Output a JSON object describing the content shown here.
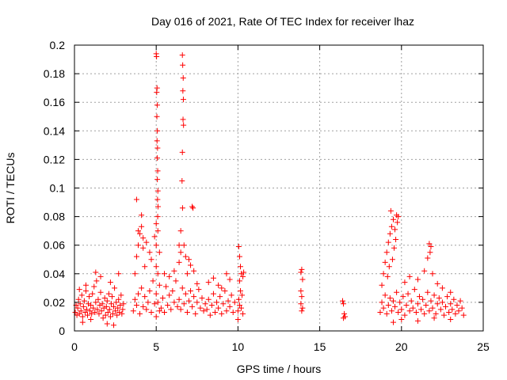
{
  "chart_data": {
    "type": "scatter",
    "title": "Day 016 of 2021, Rate Of TEC Index for receiver lhaz",
    "xlabel": "GPS time / hours",
    "ylabel": "ROTI / TECUs",
    "xlim": [
      0,
      25
    ],
    "ylim": [
      0,
      0.2
    ],
    "x_ticks": [
      "0",
      "5",
      "10",
      "15",
      "20",
      "25"
    ],
    "y_ticks": [
      "0",
      "0.02",
      "0.04",
      "0.06",
      "0.08",
      "0.1",
      "0.12",
      "0.14",
      "0.16",
      "0.18",
      "0.2"
    ],
    "grid": true,
    "marker": "+",
    "color": "#ff0000",
    "series": [
      {
        "points": [
          [
            0.05,
            0.013
          ],
          [
            0.1,
            0.018
          ],
          [
            0.15,
            0.011
          ],
          [
            0.2,
            0.016
          ],
          [
            0.25,
            0.022
          ],
          [
            0.3,
            0.012
          ],
          [
            0.35,
            0.019
          ],
          [
            0.4,
            0.014
          ],
          [
            0.45,
            0.025
          ],
          [
            0.5,
            0.01
          ],
          [
            0.55,
            0.017
          ],
          [
            0.6,
            0.021
          ],
          [
            0.65,
            0.013
          ],
          [
            0.7,
            0.028
          ],
          [
            0.75,
            0.015
          ],
          [
            0.8,
            0.011
          ],
          [
            0.85,
            0.019
          ],
          [
            0.9,
            0.024
          ],
          [
            0.95,
            0.014
          ],
          [
            1.0,
            0.018
          ],
          [
            1.05,
            0.012
          ],
          [
            1.1,
            0.026
          ],
          [
            1.15,
            0.016
          ],
          [
            1.2,
            0.031
          ],
          [
            1.25,
            0.013
          ],
          [
            1.3,
            0.02
          ],
          [
            1.35,
            0.035
          ],
          [
            1.4,
            0.015
          ],
          [
            1.45,
            0.022
          ],
          [
            1.5,
            0.012
          ],
          [
            1.55,
            0.018
          ],
          [
            1.6,
            0.027
          ],
          [
            1.65,
            0.014
          ],
          [
            1.7,
            0.019
          ],
          [
            1.75,
            0.009
          ],
          [
            1.8,
            0.016
          ],
          [
            1.85,
            0.023
          ],
          [
            1.9,
            0.011
          ],
          [
            1.95,
            0.017
          ],
          [
            2.0,
            0.021
          ],
          [
            2.05,
            0.013
          ],
          [
            2.1,
            0.026
          ],
          [
            2.15,
            0.015
          ],
          [
            2.2,
            0.01
          ],
          [
            2.25,
            0.019
          ],
          [
            2.3,
            0.024
          ],
          [
            2.35,
            0.012
          ],
          [
            2.4,
            0.017
          ],
          [
            2.45,
            0.03
          ],
          [
            2.5,
            0.014
          ],
          [
            2.55,
            0.02
          ],
          [
            2.6,
            0.011
          ],
          [
            2.65,
            0.016
          ],
          [
            2.7,
            0.022
          ],
          [
            2.75,
            0.013
          ],
          [
            2.8,
            0.018
          ],
          [
            2.85,
            0.025
          ],
          [
            2.9,
            0.012
          ],
          [
            2.95,
            0.015
          ],
          [
            3.0,
            0.019
          ],
          [
            0.3,
            0.029
          ],
          [
            0.7,
            0.032
          ],
          [
            1.3,
            0.041
          ],
          [
            1.6,
            0.038
          ],
          [
            2.2,
            0.034
          ],
          [
            2.7,
            0.04
          ],
          [
            1.0,
            0.008
          ],
          [
            2.0,
            0.005
          ],
          [
            2.4,
            0.004
          ],
          [
            0.5,
            0.006
          ],
          [
            3.6,
            0.014
          ],
          [
            3.7,
            0.022
          ],
          [
            3.8,
            0.018
          ],
          [
            3.9,
            0.026
          ],
          [
            4.0,
            0.012
          ],
          [
            4.1,
            0.03
          ],
          [
            4.2,
            0.017
          ],
          [
            4.3,
            0.024
          ],
          [
            4.4,
            0.015
          ],
          [
            4.5,
            0.02
          ],
          [
            4.6,
            0.028
          ],
          [
            4.7,
            0.013
          ],
          [
            4.8,
            0.035
          ],
          [
            4.9,
            0.019
          ],
          [
            3.7,
            0.04
          ],
          [
            3.8,
            0.052
          ],
          [
            3.9,
            0.06
          ],
          [
            4.0,
            0.068
          ],
          [
            4.1,
            0.073
          ],
          [
            4.2,
            0.065
          ],
          [
            4.3,
            0.045
          ],
          [
            4.4,
            0.062
          ],
          [
            4.6,
            0.055
          ],
          [
            4.7,
            0.05
          ],
          [
            4.9,
            0.066
          ],
          [
            3.8,
            0.092
          ],
          [
            4.1,
            0.081
          ],
          [
            3.9,
            0.07
          ],
          [
            4.2,
            0.058
          ],
          [
            5.0,
            0.194
          ],
          [
            5.02,
            0.192
          ],
          [
            5.05,
            0.17
          ],
          [
            5.03,
            0.167
          ],
          [
            5.06,
            0.158
          ],
          [
            5.04,
            0.15
          ],
          [
            5.07,
            0.14
          ],
          [
            5.05,
            0.133
          ],
          [
            5.08,
            0.128
          ],
          [
            5.06,
            0.121
          ],
          [
            5.09,
            0.112
          ],
          [
            5.07,
            0.106
          ],
          [
            5.1,
            0.098
          ],
          [
            5.08,
            0.092
          ],
          [
            5.11,
            0.087
          ],
          [
            5.09,
            0.08
          ],
          [
            5.0,
            0.075
          ],
          [
            5.1,
            0.07
          ],
          [
            5.0,
            0.06
          ],
          [
            5.2,
            0.055
          ],
          [
            5.0,
            0.045
          ],
          [
            5.1,
            0.04
          ],
          [
            5.2,
            0.032
          ],
          [
            5.0,
            0.026
          ],
          [
            5.1,
            0.02
          ],
          [
            5.2,
            0.014
          ],
          [
            5.0,
            0.01
          ],
          [
            5.3,
            0.016
          ],
          [
            5.4,
            0.023
          ],
          [
            5.5,
            0.013
          ],
          [
            5.6,
            0.031
          ],
          [
            5.7,
            0.018
          ],
          [
            5.8,
            0.025
          ],
          [
            5.9,
            0.015
          ],
          [
            6.0,
            0.028
          ],
          [
            6.1,
            0.02
          ],
          [
            6.2,
            0.035
          ],
          [
            6.3,
            0.017
          ],
          [
            5.5,
            0.04
          ],
          [
            5.8,
            0.038
          ],
          [
            6.1,
            0.042
          ],
          [
            6.4,
            0.06
          ],
          [
            6.5,
            0.055
          ],
          [
            6.6,
            0.193
          ],
          [
            6.62,
            0.186
          ],
          [
            6.65,
            0.177
          ],
          [
            6.63,
            0.168
          ],
          [
            6.66,
            0.162
          ],
          [
            6.64,
            0.148
          ],
          [
            6.67,
            0.144
          ],
          [
            6.6,
            0.125
          ],
          [
            6.58,
            0.105
          ],
          [
            6.61,
            0.086
          ],
          [
            6.5,
            0.07
          ],
          [
            6.4,
            0.048
          ],
          [
            6.7,
            0.06
          ],
          [
            6.8,
            0.052
          ],
          [
            6.9,
            0.04
          ],
          [
            7.0,
            0.05
          ],
          [
            7.1,
            0.046
          ],
          [
            7.2,
            0.087
          ],
          [
            7.25,
            0.086
          ],
          [
            7.3,
            0.042
          ],
          [
            7.5,
            0.033
          ],
          [
            6.4,
            0.022
          ],
          [
            6.5,
            0.015
          ],
          [
            6.6,
            0.03
          ],
          [
            6.7,
            0.019
          ],
          [
            6.8,
            0.026
          ],
          [
            6.9,
            0.013
          ],
          [
            7.0,
            0.021
          ],
          [
            7.1,
            0.028
          ],
          [
            7.2,
            0.017
          ],
          [
            7.3,
            0.024
          ],
          [
            7.4,
            0.012
          ],
          [
            7.5,
            0.02
          ],
          [
            7.6,
            0.029
          ],
          [
            7.7,
            0.016
          ],
          [
            7.8,
            0.023
          ],
          [
            7.9,
            0.014
          ],
          [
            8.0,
            0.019
          ],
          [
            8.1,
            0.015
          ],
          [
            8.2,
            0.022
          ],
          [
            8.3,
            0.011
          ],
          [
            8.4,
            0.018
          ],
          [
            8.5,
            0.026
          ],
          [
            8.6,
            0.013
          ],
          [
            8.7,
            0.02
          ],
          [
            8.8,
            0.016
          ],
          [
            8.9,
            0.024
          ],
          [
            9.0,
            0.012
          ],
          [
            9.1,
            0.019
          ],
          [
            9.2,
            0.028
          ],
          [
            9.3,
            0.014
          ],
          [
            9.4,
            0.021
          ],
          [
            9.5,
            0.017
          ],
          [
            9.6,
            0.025
          ],
          [
            9.7,
            0.013
          ],
          [
            9.8,
            0.02
          ],
          [
            8.2,
            0.034
          ],
          [
            8.5,
            0.037
          ],
          [
            9.3,
            0.04
          ],
          [
            9.5,
            0.036
          ],
          [
            9.0,
            0.03
          ],
          [
            8.8,
            0.032
          ],
          [
            10.0,
            0.014
          ],
          [
            10.05,
            0.022
          ],
          [
            10.1,
            0.018
          ],
          [
            10.15,
            0.028
          ],
          [
            10.2,
            0.016
          ],
          [
            10.25,
            0.025
          ],
          [
            10.3,
            0.012
          ],
          [
            10.1,
            0.035
          ],
          [
            10.2,
            0.04
          ],
          [
            10.15,
            0.045
          ],
          [
            10.1,
            0.052
          ],
          [
            10.05,
            0.059
          ],
          [
            10.3,
            0.038
          ],
          [
            10.35,
            0.041
          ],
          [
            10.0,
            0.008
          ],
          [
            13.85,
            0.041
          ],
          [
            13.9,
            0.043
          ],
          [
            13.95,
            0.036
          ],
          [
            13.85,
            0.028
          ],
          [
            13.9,
            0.024
          ],
          [
            13.85,
            0.019
          ],
          [
            13.95,
            0.016
          ],
          [
            13.9,
            0.014
          ],
          [
            16.4,
            0.021
          ],
          [
            16.45,
            0.019
          ],
          [
            16.5,
            0.012
          ],
          [
            16.55,
            0.01
          ],
          [
            16.45,
            0.009
          ],
          [
            18.7,
            0.013
          ],
          [
            18.8,
            0.02
          ],
          [
            18.9,
            0.016
          ],
          [
            19.0,
            0.025
          ],
          [
            19.1,
            0.012
          ],
          [
            19.2,
            0.018
          ],
          [
            19.3,
            0.023
          ],
          [
            19.4,
            0.014
          ],
          [
            19.5,
            0.021
          ],
          [
            19.6,
            0.017
          ],
          [
            19.7,
            0.027
          ],
          [
            19.8,
            0.013
          ],
          [
            19.9,
            0.02
          ],
          [
            20.0,
            0.015
          ],
          [
            20.1,
            0.024
          ],
          [
            20.2,
            0.011
          ],
          [
            20.3,
            0.018
          ],
          [
            20.4,
            0.026
          ],
          [
            20.5,
            0.014
          ],
          [
            20.6,
            0.021
          ],
          [
            20.7,
            0.016
          ],
          [
            20.8,
            0.029
          ],
          [
            20.9,
            0.013
          ],
          [
            21.0,
            0.019
          ],
          [
            21.1,
            0.024
          ],
          [
            21.2,
            0.015
          ],
          [
            21.3,
            0.022
          ],
          [
            21.4,
            0.012
          ],
          [
            21.5,
            0.018
          ],
          [
            21.6,
            0.027
          ],
          [
            21.7,
            0.014
          ],
          [
            21.8,
            0.021
          ],
          [
            21.9,
            0.016
          ],
          [
            22.0,
            0.025
          ],
          [
            22.1,
            0.012
          ],
          [
            22.2,
            0.019
          ],
          [
            22.3,
            0.023
          ],
          [
            22.4,
            0.015
          ],
          [
            22.5,
            0.02
          ],
          [
            22.6,
            0.011
          ],
          [
            22.7,
            0.017
          ],
          [
            22.8,
            0.024
          ],
          [
            22.9,
            0.013
          ],
          [
            23.0,
            0.019
          ],
          [
            23.1,
            0.015
          ],
          [
            23.2,
            0.022
          ],
          [
            23.3,
            0.012
          ],
          [
            23.4,
            0.018
          ],
          [
            23.5,
            0.014
          ],
          [
            23.6,
            0.021
          ],
          [
            23.7,
            0.016
          ],
          [
            23.8,
            0.011
          ],
          [
            18.8,
            0.032
          ],
          [
            18.9,
            0.04
          ],
          [
            19.0,
            0.048
          ],
          [
            19.1,
            0.055
          ],
          [
            19.2,
            0.062
          ],
          [
            19.3,
            0.068
          ],
          [
            19.4,
            0.073
          ],
          [
            19.35,
            0.084
          ],
          [
            19.5,
            0.078
          ],
          [
            19.6,
            0.071
          ],
          [
            19.7,
            0.081
          ],
          [
            19.8,
            0.08
          ],
          [
            19.75,
            0.076
          ],
          [
            19.65,
            0.064
          ],
          [
            19.55,
            0.058
          ],
          [
            19.45,
            0.05
          ],
          [
            19.25,
            0.045
          ],
          [
            19.15,
            0.038
          ],
          [
            20.2,
            0.034
          ],
          [
            20.5,
            0.038
          ],
          [
            21.0,
            0.036
          ],
          [
            21.4,
            0.042
          ],
          [
            21.6,
            0.051
          ],
          [
            21.7,
            0.061
          ],
          [
            21.8,
            0.059
          ],
          [
            21.75,
            0.055
          ],
          [
            21.9,
            0.04
          ],
          [
            22.2,
            0.033
          ],
          [
            22.5,
            0.03
          ],
          [
            23.0,
            0.027
          ],
          [
            20.0,
            0.008
          ],
          [
            21.0,
            0.007
          ],
          [
            22.0,
            0.009
          ],
          [
            19.5,
            0.006
          ],
          [
            23.0,
            0.008
          ]
        ]
      }
    ]
  }
}
